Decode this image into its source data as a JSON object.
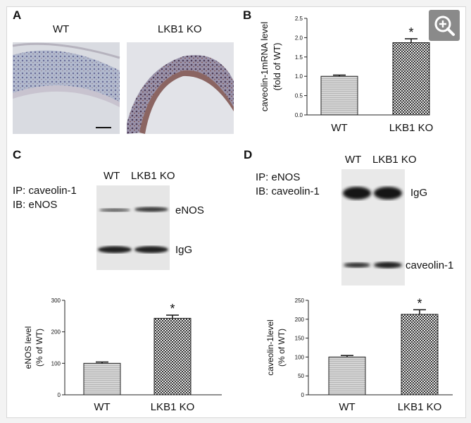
{
  "panel_a": {
    "label": "A",
    "left_title": "WT",
    "right_title": "LKB1 KO"
  },
  "panel_b": {
    "label": "B"
  },
  "panel_c": {
    "label": "C",
    "lane_wt": "WT",
    "lane_ko": "LKB1 KO",
    "ip_text": "IP: caveolin-1",
    "ib_text": "IB: eNOS",
    "band_top": "eNOS",
    "band_bottom": "IgG"
  },
  "panel_d": {
    "label": "D",
    "lane_wt": "WT",
    "lane_ko": "LKB1 KO",
    "ip_text": "IP: eNOS",
    "ib_text": "IB: caveolin-1",
    "band_top": "IgG",
    "band_bottom": "caveolin-1"
  },
  "chart_data": [
    {
      "type": "bar",
      "panel": "B",
      "categories": [
        "WT",
        "LKB1 KO"
      ],
      "values": [
        1.0,
        1.87
      ],
      "errors": [
        0.03,
        0.1
      ],
      "significance": [
        "",
        "*"
      ],
      "ylabel_line1": "caveolin-1mRNA level",
      "ylabel_line2": "(fold of WT)",
      "ylim": [
        0,
        2.5
      ],
      "yticks": [
        0.0,
        0.5,
        1.0,
        1.5,
        2.0,
        2.5
      ],
      "ytick_labels": [
        "0.0",
        "0.5",
        "1.0",
        "1.5",
        "2.0",
        "2.5"
      ]
    },
    {
      "type": "bar",
      "panel": "C",
      "categories": [
        "WT",
        "LKB1 KO"
      ],
      "values": [
        100,
        243
      ],
      "errors": [
        4,
        10
      ],
      "significance": [
        "",
        "*"
      ],
      "ylabel_line1": "eNOS level",
      "ylabel_line2": "(% of WT)",
      "ylim": [
        0,
        300
      ],
      "yticks": [
        0,
        100,
        200,
        300
      ],
      "ytick_labels": [
        "0",
        "100",
        "200",
        "300"
      ]
    },
    {
      "type": "bar",
      "panel": "D",
      "categories": [
        "WT",
        "LKB1 KO"
      ],
      "values": [
        100,
        213
      ],
      "errors": [
        4,
        12
      ],
      "significance": [
        "",
        "*"
      ],
      "ylabel_line1": "caveolin-1level",
      "ylabel_line2": "(% of WT)",
      "ylim": [
        0,
        250
      ],
      "yticks": [
        0,
        50,
        100,
        150,
        200,
        250
      ],
      "ytick_labels": [
        "0",
        "50",
        "100",
        "150",
        "200",
        "250"
      ]
    }
  ],
  "colors": {
    "bar_wt": "#d4d4d4",
    "bar_ko": "#e9e9e9",
    "zoom_bg": "#8a8a8a"
  },
  "zoom_icon": "zoom-in-icon"
}
